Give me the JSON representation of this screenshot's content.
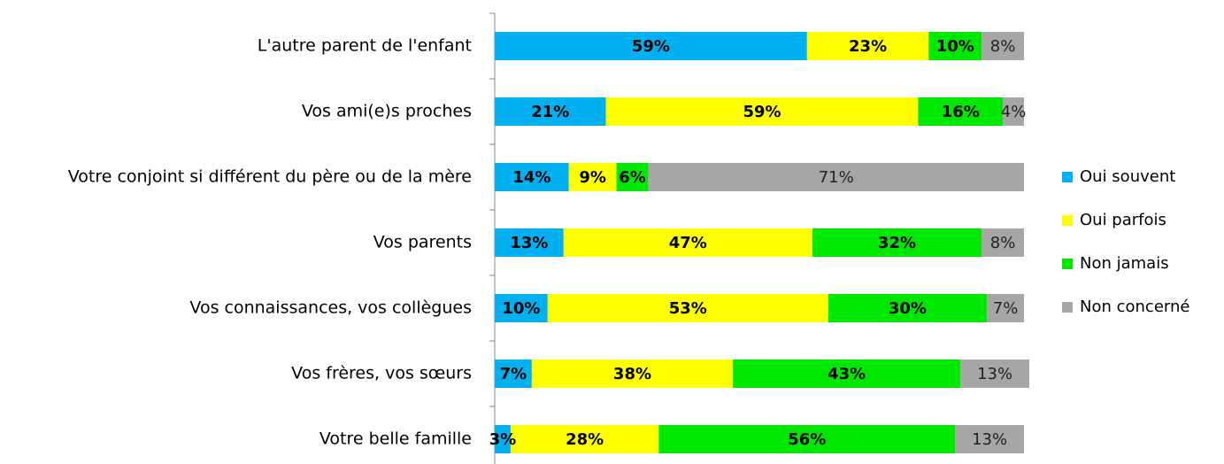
{
  "chart_data": {
    "type": "stacked-bar-horizontal",
    "categories": [
      "L'autre parent de l'enfant",
      "Vos ami(e)s proches",
      "Votre conjoint si différent du père ou de la mère",
      "Vos parents",
      "Vos connaissances, vos collègues",
      "Vos frères, vos sœurs",
      "Votre belle famille"
    ],
    "xlim": [
      0,
      100
    ],
    "legend": "right",
    "series": [
      {
        "name": "Oui souvent",
        "color": "#00b0f0",
        "values": [
          59,
          21,
          14,
          13,
          10,
          7,
          3
        ],
        "value_labels": [
          "59%",
          "21%",
          "14%",
          "13%",
          "10%",
          "7%",
          "3%"
        ]
      },
      {
        "name": "Oui parfois",
        "color": "#ffff00",
        "values": [
          23,
          59,
          9,
          47,
          53,
          38,
          28
        ],
        "value_labels": [
          "23%",
          "59%",
          "9%",
          "47%",
          "53%",
          "38%",
          "28%"
        ]
      },
      {
        "name": "Non jamais",
        "color": "#00e800",
        "values": [
          10,
          16,
          6,
          32,
          30,
          43,
          56
        ],
        "value_labels": [
          "10%",
          "16%",
          "6%",
          "32%",
          "30%",
          "43%",
          "56%"
        ]
      },
      {
        "name": "Non concerné",
        "color": "#a6a6a6",
        "values": [
          8,
          4,
          71,
          8,
          7,
          13,
          13
        ],
        "value_labels": [
          "8%",
          "4%",
          "71%",
          "8%",
          "7%",
          "13%",
          "13%"
        ]
      }
    ]
  }
}
